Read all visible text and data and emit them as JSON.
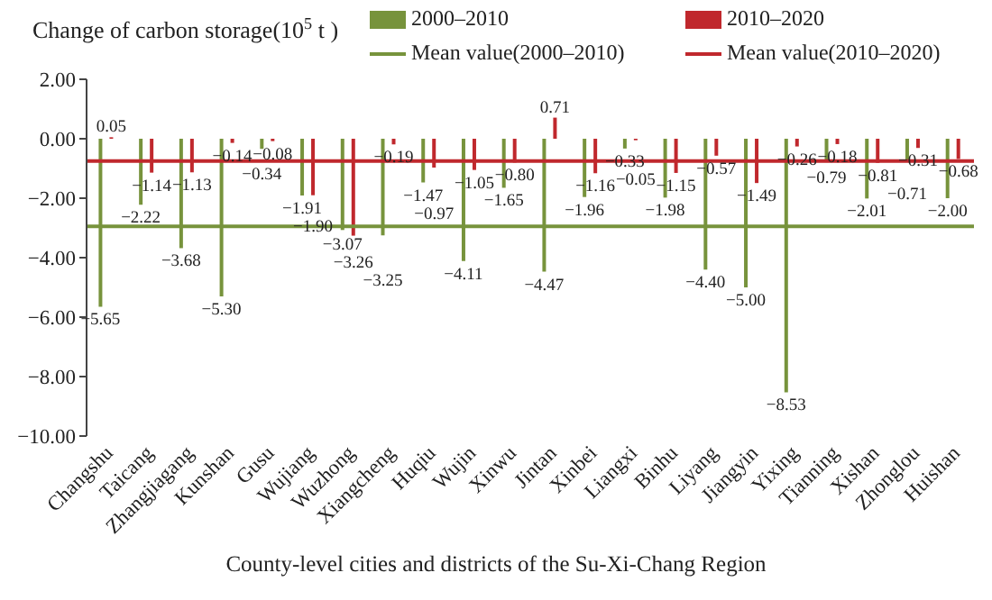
{
  "chart_data": {
    "type": "bar",
    "ylabel": "Change of carbon storage(10$^{5}$ t )",
    "xlabel": "County-level cities and districts of the Su-Xi-Chang Region",
    "categories": [
      "Changshu",
      "Taicang",
      "Zhangjiagang",
      "Kunshan",
      "Gusu",
      "Wujiang",
      "Wuzhong",
      "Xiangcheng",
      "Huqiu",
      "Wujin",
      "Xinwu",
      "Jintan",
      "Xinbei",
      "Liangxi",
      "Binhu",
      "Liyang",
      "Jiangyin",
      "Yixing",
      "Tianning",
      "Xishan",
      "Zhonglou",
      "Huishan"
    ],
    "series": [
      {
        "name": "2000–2010",
        "color": "#77933c",
        "values": [
          -5.65,
          -2.22,
          -3.68,
          -5.3,
          -0.34,
          -1.91,
          -3.07,
          -3.25,
          -1.47,
          -4.11,
          -1.65,
          -4.47,
          -1.96,
          -0.33,
          -1.98,
          -4.4,
          -5.0,
          -8.53,
          -0.79,
          -2.01,
          -0.71,
          -2.0
        ],
        "value_labels": [
          "−5.65",
          "−2.22",
          "−3.68",
          "−5.30",
          "−0.34",
          "−1.91",
          "−3.07",
          "−3.25",
          "−1.47",
          "−4.11",
          "−1.65",
          "−4.47",
          "−1.96",
          "−0.33",
          "−1.98",
          "−4.40",
          "−5.00",
          "−8.53",
          "−0.79",
          "−2.01",
          "−0.71",
          "−2.00"
        ]
      },
      {
        "name": "2010–2020",
        "color": "#c0282d",
        "values": [
          0.05,
          -1.14,
          -1.13,
          -0.14,
          -0.08,
          -1.9,
          -3.26,
          -0.19,
          -0.97,
          -1.05,
          -0.8,
          0.71,
          -1.16,
          -0.05,
          -1.15,
          -0.57,
          -1.49,
          -0.26,
          -0.18,
          -0.81,
          -0.31,
          -0.68
        ],
        "value_labels": [
          "0.05",
          "−1.14",
          "−1.13",
          "−0.14",
          "−0.08",
          "−1.90",
          "−3.26",
          "−0.19",
          "−0.97",
          "−1.05",
          "−0.80",
          "0.71",
          "−1.16",
          "−0.05",
          "−1.15",
          "−0.57",
          "−1.49",
          "−0.26",
          "−0.18",
          "−0.81",
          "−0.31",
          "−0.68"
        ]
      }
    ],
    "ref_lines": [
      {
        "axis": "y",
        "value": -2.95,
        "label": "Mean value(2000–2010)",
        "color": "#77933c"
      },
      {
        "axis": "y",
        "value": -0.75,
        "label": "Mean value(2010–2020)",
        "color": "#c0282d"
      }
    ],
    "ylim": [
      -10,
      2
    ],
    "yticks": [
      {
        "value": -10,
        "label": "−10.00"
      },
      {
        "value": -8,
        "label": "−8.00"
      },
      {
        "value": -6,
        "label": "−6.00"
      },
      {
        "value": -4,
        "label": "−4.00"
      },
      {
        "value": -2,
        "label": "−2.00"
      },
      {
        "value": 0,
        "label": "0.00"
      },
      {
        "value": 2,
        "label": "2.00"
      }
    ],
    "legend": "top"
  }
}
